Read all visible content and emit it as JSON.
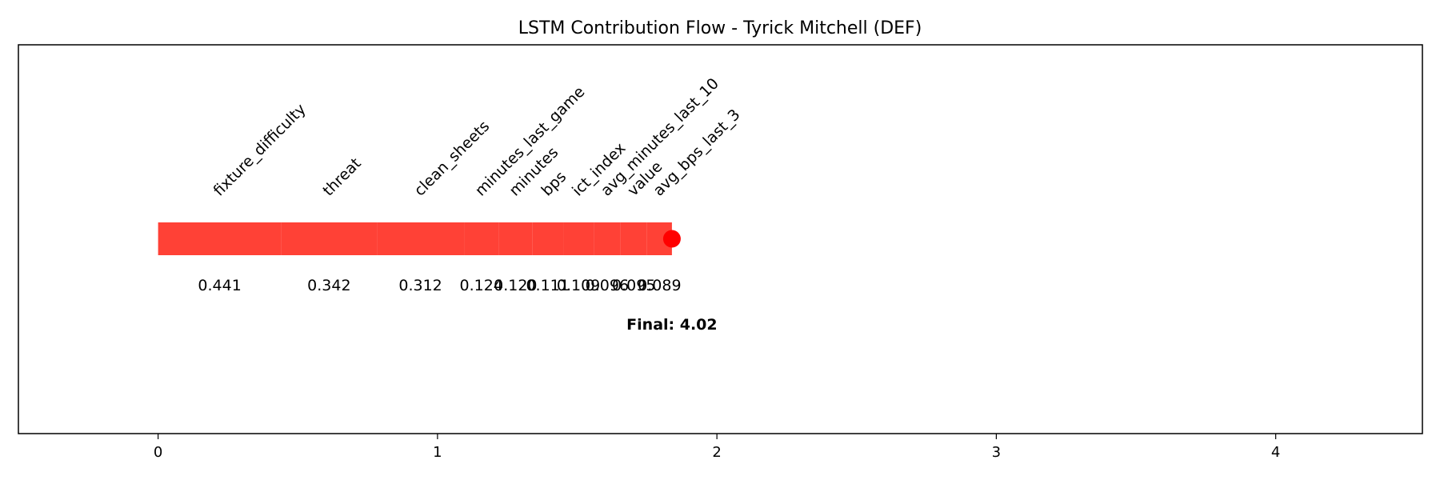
{
  "chart_data": {
    "type": "bar",
    "title": "LSTM Contribution Flow - Tyrick Mitchell (DEF)",
    "xlabel": "",
    "ylabel": "",
    "xlim": [
      -0.5,
      4.525
    ],
    "xticks": [
      0,
      1,
      2,
      3,
      4
    ],
    "grid": false,
    "bar_color": "#ff4136",
    "end_marker_color": "#ff0000",
    "contributions": [
      {
        "feature": "fixture_difficulty",
        "value": 0.441,
        "label": "0.441"
      },
      {
        "feature": "threat",
        "value": 0.342,
        "label": "0.342"
      },
      {
        "feature": "clean_sheets",
        "value": 0.312,
        "label": "0.312"
      },
      {
        "feature": "minutes_last_game",
        "value": 0.124,
        "label": "0.124"
      },
      {
        "feature": "minutes",
        "value": 0.12,
        "label": "0.120"
      },
      {
        "feature": "bps",
        "value": 0.111,
        "label": "0.111"
      },
      {
        "feature": "ict_index",
        "value": 0.109,
        "label": "0.109"
      },
      {
        "feature": "avg_minutes_last_10",
        "value": 0.096,
        "label": "0.096"
      },
      {
        "feature": "value",
        "value": 0.095,
        "label": "0.095"
      },
      {
        "feature": "avg_bps_last_3",
        "value": 0.089,
        "label": "0.089"
      }
    ],
    "final_label": "Final: 4.02"
  }
}
